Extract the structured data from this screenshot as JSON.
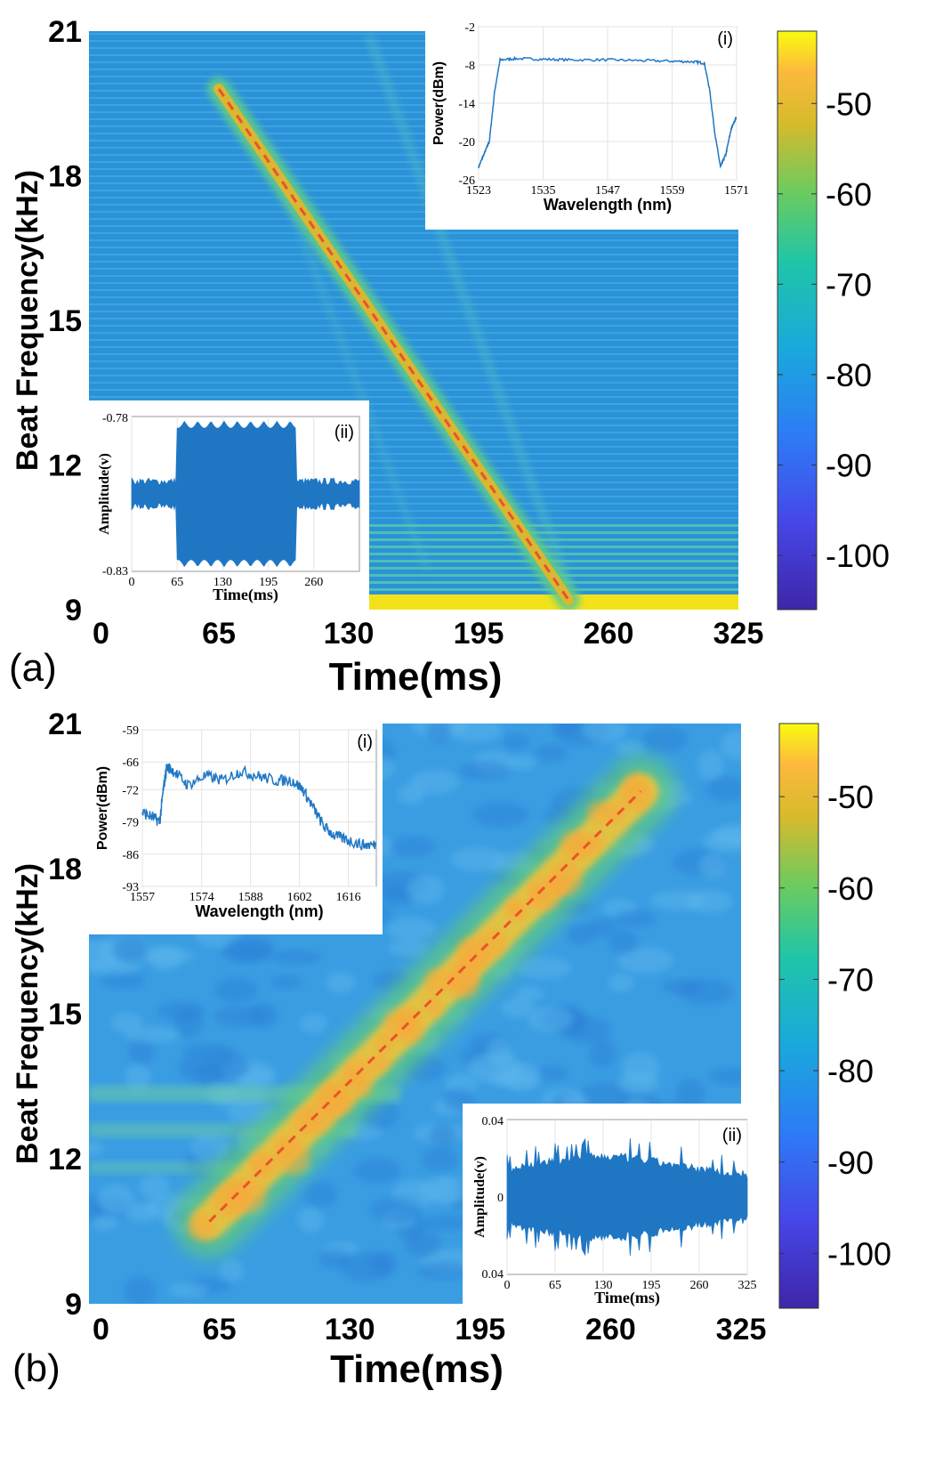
{
  "panels": [
    {
      "label": "(a)",
      "colorbar": {
        "ticks": [
          -50,
          -60,
          -70,
          -80,
          -90,
          -100
        ],
        "range": [
          -106,
          -42
        ]
      },
      "main": {
        "xlabel": "Time(ms)",
        "ylabel": "Beat Frequency(kHz)",
        "xticks": [
          0,
          65,
          130,
          195,
          260,
          325
        ],
        "yticks": [
          9,
          12,
          15,
          18,
          21
        ],
        "xlim": [
          0,
          325
        ],
        "ylim": [
          9,
          21
        ],
        "chirp": {
          "x": [
            65,
            240
          ],
          "y": [
            19.8,
            9.2
          ],
          "direction": "down"
        }
      },
      "inset_i": {
        "tag": "(i)",
        "xlabel": "Wavelength (nm)",
        "ylabel": "Power(dBm)",
        "xticks": [
          1523,
          1535,
          1547,
          1559,
          1571
        ],
        "yticks": [
          -2,
          -8,
          -14,
          -20,
          -26
        ],
        "xlim": [
          1523,
          1571
        ],
        "ylim": [
          -26,
          -2
        ],
        "x": [
          1523,
          1524,
          1525,
          1526,
          1527,
          1530,
          1535,
          1540,
          1547,
          1553,
          1559,
          1563,
          1565,
          1566,
          1567,
          1568,
          1569,
          1570,
          1571
        ],
        "y": [
          -24,
          -22,
          -20,
          -12,
          -7.2,
          -7.0,
          -7.1,
          -7.2,
          -7.2,
          -7.3,
          -7.4,
          -7.5,
          -7.7,
          -12,
          -19,
          -24,
          -22,
          -18,
          -16
        ]
      },
      "inset_ii": {
        "tag": "(ii)",
        "xlabel": "Time(ms)",
        "ylabel": "Amplitude(v)",
        "xticks": [
          0,
          65,
          130,
          195,
          260
        ],
        "ytick_top": "-0.78",
        "ytick_bottom": "-0.83",
        "xlim": [
          0,
          325
        ],
        "burst": [
          65,
          235
        ]
      }
    },
    {
      "label": "(b)",
      "colorbar": {
        "ticks": [
          -50,
          -60,
          -70,
          -80,
          -90,
          -100
        ],
        "range": [
          -106,
          -42
        ]
      },
      "main": {
        "xlabel": "Time(ms)",
        "ylabel": "Beat Frequency(kHz)",
        "xticks": [
          0,
          65,
          130,
          195,
          260,
          325
        ],
        "yticks": [
          9,
          12,
          15,
          18,
          21
        ],
        "xlim": [
          0,
          325
        ],
        "ylim": [
          9,
          21
        ],
        "chirp": {
          "x": [
            60,
            275
          ],
          "y": [
            10.7,
            19.6
          ],
          "direction": "up"
        }
      },
      "inset_i": {
        "tag": "(i)",
        "xlabel": "Wavelength (nm)",
        "ylabel": "Power(dBm)",
        "xticks": [
          1557,
          1574,
          1588,
          1602,
          1616
        ],
        "yticks": [
          -59,
          -66,
          -72,
          -79,
          -86,
          -93
        ],
        "xlim": [
          1557,
          1624
        ],
        "ylim": [
          -93,
          -59
        ],
        "x": [
          1557,
          1560,
          1562,
          1563,
          1564,
          1566,
          1570,
          1575,
          1580,
          1585,
          1590,
          1595,
          1600,
          1603,
          1606,
          1609,
          1612,
          1616,
          1620,
          1624
        ],
        "y": [
          -77,
          -78,
          -79,
          -72,
          -67,
          -68,
          -71,
          -69,
          -70,
          -68,
          -69,
          -70,
          -70,
          -72,
          -76,
          -80,
          -82,
          -83,
          -84,
          -84
        ]
      },
      "inset_ii": {
        "tag": "(ii)",
        "xlabel": "Time(ms)",
        "ylabel": "Amplitude(v)",
        "xticks": [
          0,
          65,
          130,
          195,
          260,
          325
        ],
        "ytick_top": "0.04",
        "ytick_mid": "0",
        "ytick_bottom": "0.04",
        "xlim": [
          0,
          325
        ]
      }
    }
  ],
  "colors": {
    "background_a": "#2a8fd6",
    "background_b": "#3a9de0",
    "trace": "#1f77c4",
    "dashed": "#e8542b"
  }
}
